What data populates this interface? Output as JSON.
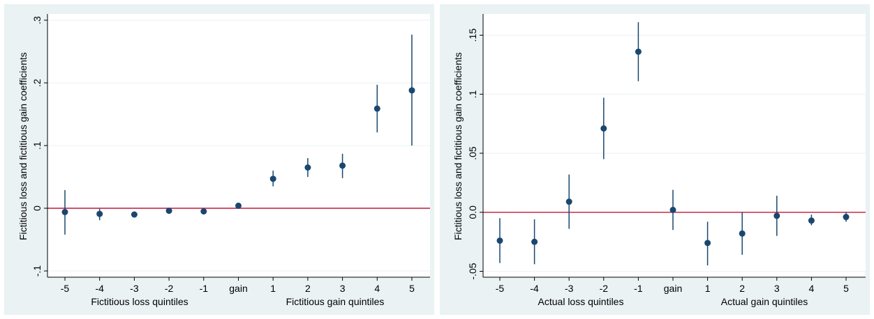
{
  "chart_data": [
    {
      "type": "scatter",
      "categories": [
        "-5",
        "-4",
        "-3",
        "-2",
        "-1",
        "gain",
        "1",
        "2",
        "3",
        "4",
        "5"
      ],
      "ylabel": "Fictitious loss and fictitious gain coefficients",
      "xlabel_left": "Fictitious loss quintiles",
      "xlabel_right": "Fictitious gain quintiles",
      "ylim": [
        -0.11,
        0.31
      ],
      "yticks": [
        -0.1,
        0,
        0.1,
        0.2,
        0.3
      ],
      "ytick_labels": [
        "-.1",
        "0",
        ".1",
        ".2",
        ".3"
      ],
      "reference_line": 0,
      "reference_line_color": "#c2173b",
      "marker_color": "#1a476f",
      "series": [
        {
          "estimates": [
            -0.006,
            -0.009,
            -0.01,
            -0.004,
            -0.005,
            0.004,
            0.047,
            0.065,
            0.068,
            0.159,
            0.188
          ],
          "ci_low": [
            -0.042,
            -0.019,
            -0.014,
            -0.008,
            -0.009,
            0.002,
            0.035,
            0.05,
            0.048,
            0.121,
            0.1
          ],
          "ci_high": [
            0.029,
            -0.001,
            -0.006,
            0.0,
            -0.001,
            0.006,
            0.06,
            0.08,
            0.087,
            0.197,
            0.277
          ]
        }
      ]
    },
    {
      "type": "scatter",
      "categories": [
        "-5",
        "-4",
        "-3",
        "-2",
        "-1",
        "gain",
        "1",
        "2",
        "3",
        "4",
        "5"
      ],
      "ylabel": "Fictitious loss and fictitious gain coefficients",
      "xlabel_left": "Actual loss quintiles",
      "xlabel_right": "Actual gain quintiles",
      "ylim": [
        -0.055,
        0.168
      ],
      "yticks": [
        -0.05,
        0,
        0.05,
        0.1,
        0.15
      ],
      "ytick_labels": [
        "-.05",
        "0.0",
        ".05",
        ".1",
        ".15"
      ],
      "reference_line": 0,
      "reference_line_color": "#c2173b",
      "marker_color": "#1a476f",
      "series": [
        {
          "estimates": [
            -0.024,
            -0.025,
            0.009,
            0.071,
            0.136,
            0.002,
            -0.026,
            -0.018,
            -0.003,
            -0.007,
            -0.004
          ],
          "ci_low": [
            -0.043,
            -0.044,
            -0.014,
            0.045,
            0.111,
            -0.015,
            -0.045,
            -0.036,
            -0.02,
            -0.011,
            -0.008
          ],
          "ci_high": [
            -0.005,
            -0.006,
            0.032,
            0.097,
            0.161,
            0.019,
            -0.008,
            0.0,
            0.014,
            -0.002,
            0.0
          ]
        }
      ]
    }
  ]
}
